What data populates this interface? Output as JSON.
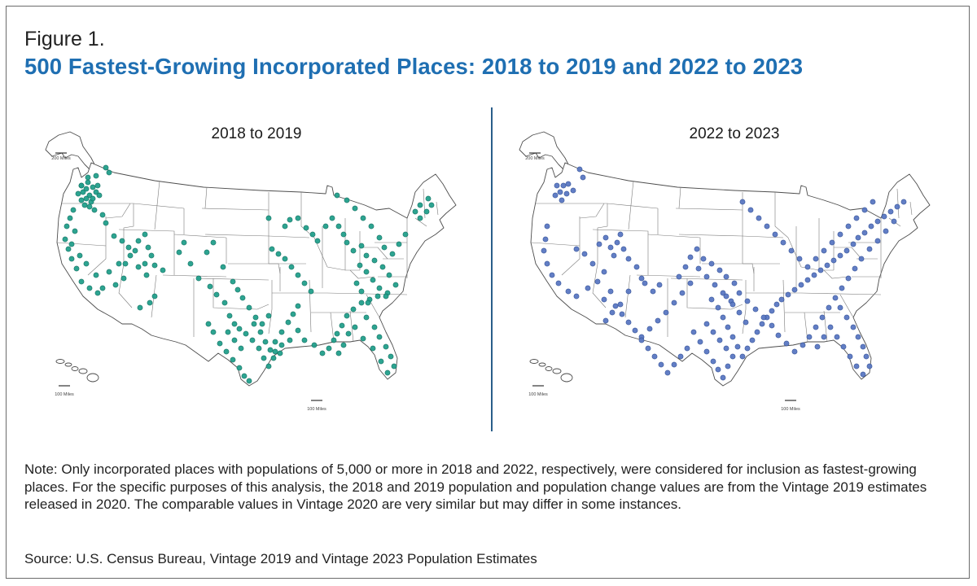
{
  "figure": {
    "label": "Figure 1.",
    "title": "500 Fastest-Growing Incorporated Places: 2018 to 2019 and 2022 to 2023"
  },
  "maps": [
    {
      "id": "left",
      "title": "2018 to 2019",
      "dot_color": "#22a08c",
      "dot_stroke": "#0e6d5d",
      "scale_alaska": "200 Miles",
      "scale_hawaii": "100 Miles",
      "scale_conus": "100 Miles"
    },
    {
      "id": "right",
      "title": "2022 to 2023",
      "dot_color": "#5a78c2",
      "dot_stroke": "#314f96",
      "scale_alaska": "200 Miles",
      "scale_hawaii": "100 Miles",
      "scale_conus": "100 Miles"
    }
  ],
  "note": "Note: Only incorporated places with populations of 5,000 or more in 2018 and 2022, respectively, were considered for inclusion as fastest-growing places. For the specific purposes of this analysis, the 2018 and 2019 population and population change values are from the Vintage 2019 estimates released in 2020. The comparable values in Vintage 2020 are very similar but may differ in some instances.",
  "source": "Source: U.S. Census Bureau, Vintage 2019 and Vintage 2023 Population Estimates"
}
